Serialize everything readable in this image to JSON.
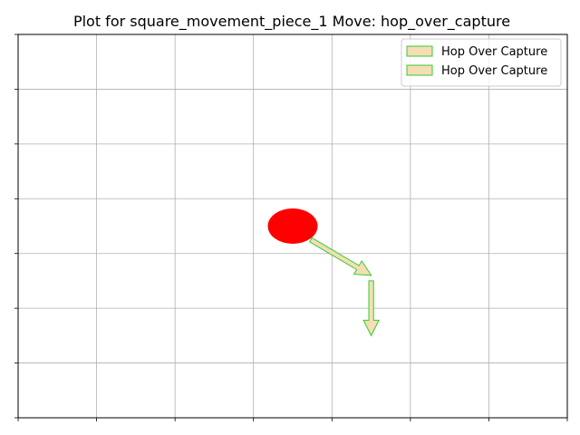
{
  "chart_data": {
    "type": "scatter",
    "title": "Plot for  square_movement_piece_1 Move: hop_over_capture",
    "xlabel": "",
    "ylabel": "",
    "xlim": [
      0,
      7
    ],
    "ylim": [
      0,
      7
    ],
    "xticks": [
      0,
      1,
      2,
      3,
      4,
      5,
      6,
      7
    ],
    "yticks": [
      0,
      1,
      2,
      3,
      4,
      5,
      6,
      7
    ],
    "grid": true,
    "legend_position": "top-right",
    "piece": {
      "x": 3.5,
      "y": 3.5,
      "color": "#ff0000"
    },
    "arrows": [
      {
        "name": "Hop Over Capture",
        "from": [
          3.73,
          3.25
        ],
        "to": [
          4.5,
          2.6
        ],
        "face_color": "#f5deb3",
        "edge_color": "#33cc33"
      },
      {
        "name": "Hop Over Capture",
        "from": [
          4.5,
          2.5
        ],
        "to": [
          4.5,
          1.5
        ],
        "face_color": "#f5deb3",
        "edge_color": "#33cc33"
      }
    ],
    "grid_color": "#b0b0b0"
  }
}
